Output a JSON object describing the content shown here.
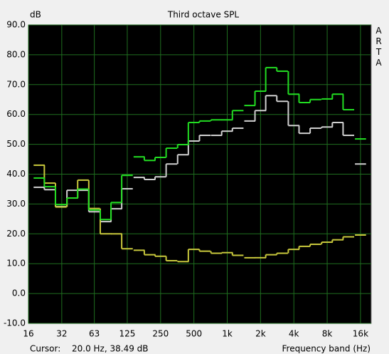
{
  "chart_data": {
    "type": "step",
    "title": "Third octave SPL",
    "y_label": "dB",
    "x_label": "Frequency band (Hz)",
    "watermark": "ARTA",
    "cursor_label": "Cursor:",
    "cursor_value": "20.0 Hz, 38.49 dB",
    "x_scale": "log",
    "grid": true,
    "xlim": [
      16,
      20000
    ],
    "ylim": [
      -10,
      90
    ],
    "xticks": [
      16,
      32,
      63,
      125,
      250,
      500,
      {
        "value": 1000,
        "label": "1k"
      },
      {
        "value": 2000,
        "label": "2k"
      },
      {
        "value": 4000,
        "label": "4k"
      },
      {
        "value": 8000,
        "label": "8k"
      },
      {
        "value": 16000,
        "label": "16k"
      }
    ],
    "yticks": [
      {
        "value": -10,
        "label": "-10.0"
      },
      {
        "value": 0,
        "label": "0.0"
      },
      {
        "value": 10,
        "label": "10.0"
      },
      {
        "value": 20,
        "label": "20.0"
      },
      {
        "value": 30,
        "label": "30.0"
      },
      {
        "value": 40,
        "label": "40.0"
      },
      {
        "value": 50,
        "label": "50.0"
      },
      {
        "value": 60,
        "label": "60.0"
      },
      {
        "value": 70,
        "label": "70.0"
      },
      {
        "value": 80,
        "label": "80.0"
      },
      {
        "value": 90,
        "label": "90.0"
      }
    ],
    "x": [
      20,
      25,
      31.5,
      40,
      50,
      63,
      80,
      100,
      125,
      160,
      200,
      250,
      315,
      400,
      500,
      630,
      800,
      1000,
      1250,
      1600,
      2000,
      2500,
      3150,
      4000,
      5000,
      6300,
      8000,
      10000,
      12500,
      16000
    ],
    "series": [
      {
        "color": "#d0d0d0",
        "values": [
          35.6,
          34.8,
          29.1,
          34.6,
          34.6,
          27.4,
          24.1,
          28.4,
          35.1,
          38.9,
          38.2,
          39.1,
          43.4,
          46.5,
          51.1,
          53,
          53,
          54.4,
          55.4,
          57.8,
          61.3,
          66.3,
          64.4,
          56.3,
          53.7,
          55.4,
          55.8,
          57.3,
          53,
          43.4
        ]
      },
      {
        "color": "#c8c83c",
        "values": [
          43,
          37,
          29,
          32,
          38,
          28.5,
          20,
          20,
          15,
          14.5,
          13,
          12.5,
          11,
          10.7,
          14.8,
          14.2,
          13.5,
          13.7,
          12.8,
          12,
          12,
          13,
          13.5,
          14.8,
          15.8,
          16.5,
          17.2,
          18,
          19,
          19.6
        ]
      },
      {
        "color": "#22dd22",
        "values": [
          38.7,
          35.8,
          29.8,
          32,
          35,
          28,
          24.8,
          30.5,
          39.6,
          45.8,
          44.6,
          45.6,
          48.7,
          49.9,
          57.3,
          57.8,
          58.2,
          58.2,
          61.3,
          63,
          67.8,
          75.7,
          74.5,
          66.8,
          64,
          65,
          65.2,
          66.8,
          61.6,
          51.8
        ]
      }
    ]
  }
}
